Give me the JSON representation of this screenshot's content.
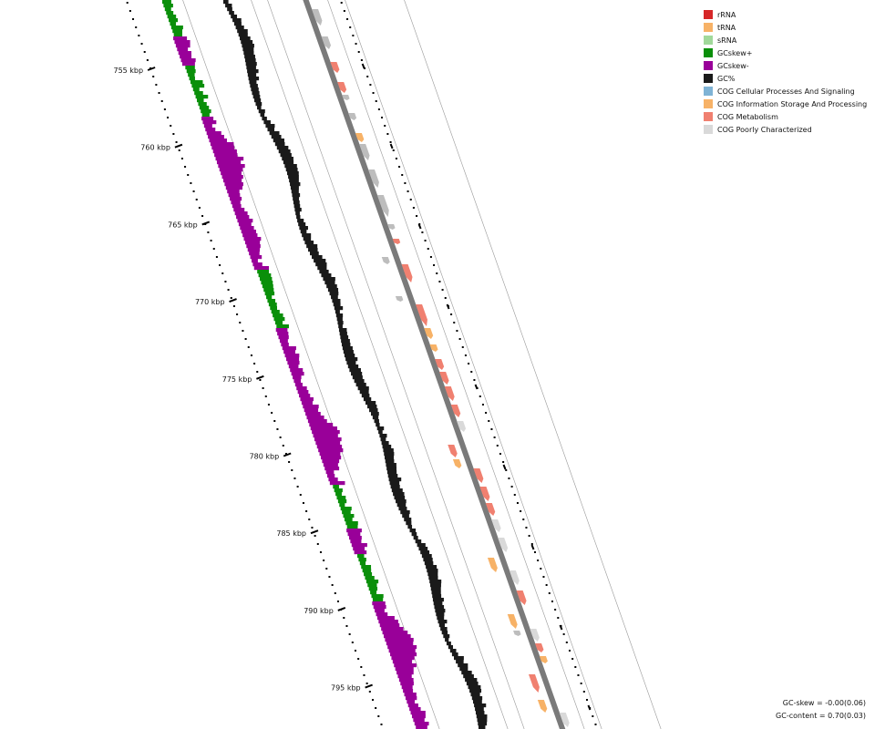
{
  "legend": [
    {
      "label": "rRNA",
      "color": "#d62728",
      "icon": "square-swatch"
    },
    {
      "label": "tRNA",
      "color": "#f7b267",
      "icon": "square-swatch"
    },
    {
      "label": "sRNA",
      "color": "#a1d99b",
      "icon": "square-swatch"
    },
    {
      "label": "GCskew+",
      "color": "#0a8f0a",
      "icon": "square-swatch"
    },
    {
      "label": "GCskew-",
      "color": "#990099",
      "icon": "square-swatch"
    },
    {
      "label": "GC%",
      "color": "#1a1a1a",
      "icon": "square-swatch"
    },
    {
      "label": "COG Cellular Processes And Signaling",
      "color": "#7fb3d5",
      "icon": "square-swatch"
    },
    {
      "label": "COG Information Storage And Processing",
      "color": "#f7b267",
      "icon": "square-swatch"
    },
    {
      "label": "COG Metabolism",
      "color": "#f08070",
      "icon": "square-swatch"
    },
    {
      "label": "COG Poorly Characterized",
      "color": "#d9d9d9",
      "icon": "square-swatch"
    }
  ],
  "axis": {
    "unit": "kbp",
    "tick_labels": [
      "755 kbp",
      "760 kbp",
      "765 kbp",
      "770 kbp",
      "775 kbp",
      "780 kbp",
      "785 kbp",
      "790 kbp",
      "795 kbp"
    ]
  },
  "stats": {
    "gc_skew": "GC-skew = -0.00(0.06)",
    "gc_content": "GC-content = 0.70(0.03)"
  },
  "colors": {
    "gc_content": "#1a1a1a",
    "skew_pos": "#0a8f0a",
    "skew_neg": "#990099",
    "backbone": "#7a7a7a",
    "guide_line": "#999999",
    "cog_metabolism": "#f08070",
    "cog_info": "#f7b267",
    "cog_poor": "#d9d9d9",
    "cog_grey": "#bdbdbd"
  }
}
